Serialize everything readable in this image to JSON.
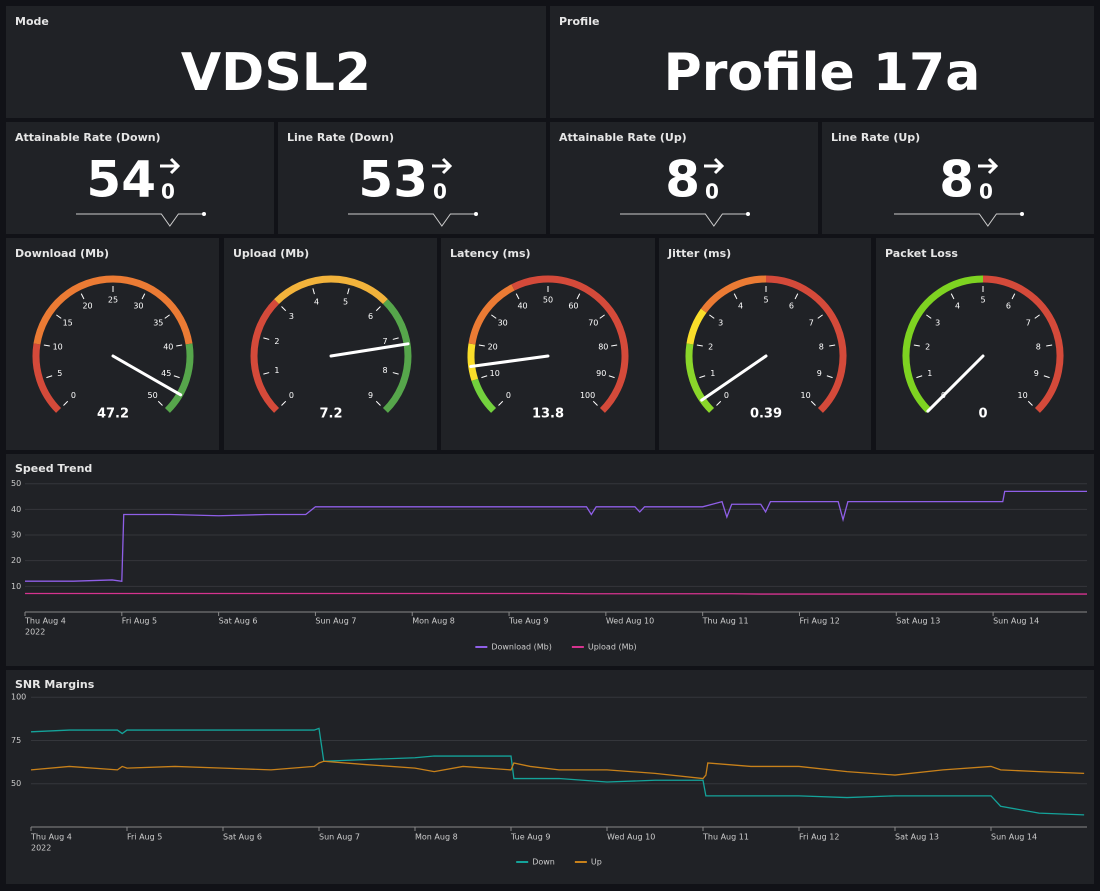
{
  "header": {
    "mode": {
      "title": "Mode",
      "value": "VDSL2"
    },
    "profile": {
      "title": "Profile",
      "value": "Profile 17a"
    }
  },
  "stats": [
    {
      "title": "Attainable Rate (Down)",
      "value": 54,
      "change": 0,
      "trend": [
        54,
        54,
        54,
        54,
        54,
        54,
        54,
        54,
        54,
        54,
        54,
        0,
        54,
        54,
        54,
        54
      ]
    },
    {
      "title": "Line Rate (Down)",
      "value": 53,
      "change": 0,
      "trend": [
        53,
        53,
        53,
        53,
        53,
        53,
        53,
        53,
        53,
        53,
        53,
        0,
        53,
        53,
        53,
        53
      ]
    },
    {
      "title": "Attainable Rate (Up)",
      "value": 8,
      "change": 0,
      "trend": [
        8,
        8,
        8,
        8,
        8,
        8,
        8,
        8,
        8,
        8,
        8,
        0,
        8,
        8,
        8,
        8
      ]
    },
    {
      "title": "Line Rate (Up)",
      "value": 8,
      "change": 0,
      "trend": [
        8,
        8,
        8,
        8,
        8,
        8,
        8,
        8,
        8,
        8,
        8,
        0,
        8,
        8,
        8,
        8
      ]
    }
  ],
  "gauges": [
    {
      "title": "Download (Mb)",
      "value": 47.2,
      "ticks": [
        0,
        5,
        10,
        15,
        20,
        25,
        30,
        35,
        40,
        45,
        50
      ],
      "bands": [
        {
          "from": 0,
          "to": 10,
          "color": "#d44a3a"
        },
        {
          "from": 10,
          "to": 40,
          "color": "#eb7b34"
        },
        {
          "from": 40,
          "to": 50,
          "color": "#56a64b"
        }
      ]
    },
    {
      "title": "Upload (Mb)",
      "value": 7.2,
      "ticks": [
        0,
        1,
        2,
        3,
        4,
        5,
        6,
        7,
        8,
        9
      ],
      "bands": [
        {
          "from": 0,
          "to": 3,
          "color": "#d44a3a"
        },
        {
          "from": 3,
          "to": 6,
          "color": "#f2b33b"
        },
        {
          "from": 6,
          "to": 9,
          "color": "#56a64b"
        }
      ]
    },
    {
      "title": "Latency (ms)",
      "value": 13.8,
      "ticks": [
        0,
        10,
        20,
        30,
        40,
        50,
        60,
        70,
        80,
        90,
        100
      ],
      "bands": [
        {
          "from": 0,
          "to": 10,
          "color": "#73d13d"
        },
        {
          "from": 10,
          "to": 20,
          "color": "#fade2a"
        },
        {
          "from": 20,
          "to": 40,
          "color": "#eb7b34"
        },
        {
          "from": 40,
          "to": 100,
          "color": "#d44a3a"
        }
      ]
    },
    {
      "title": "Jitter (ms)",
      "value": 0.39,
      "ticks": [
        0,
        1,
        2,
        3,
        4,
        5,
        6,
        7,
        8,
        9,
        10
      ],
      "bands": [
        {
          "from": 0,
          "to": 2,
          "color": "#8ad62a"
        },
        {
          "from": 2,
          "to": 3,
          "color": "#fade2a"
        },
        {
          "from": 3,
          "to": 5,
          "color": "#eb7b34"
        },
        {
          "from": 5,
          "to": 10,
          "color": "#d44a3a"
        }
      ]
    },
    {
      "title": "Packet Loss",
      "value": 0,
      "ticks": [
        0,
        1,
        2,
        3,
        4,
        5,
        6,
        7,
        8,
        9,
        10
      ],
      "bands": [
        {
          "from": 0,
          "to": 5,
          "color": "#7ed321"
        },
        {
          "from": 5,
          "to": 10,
          "color": "#d44a3a"
        }
      ]
    }
  ],
  "chart_data": [
    {
      "type": "line",
      "title": "Speed Trend",
      "year": "2022",
      "x": [
        0,
        0.5,
        0.9,
        1.0,
        1.02,
        1.5,
        2,
        2.5,
        2.9,
        3.0,
        3.5,
        4,
        4.5,
        5,
        5.5,
        5.8,
        5.85,
        5.9,
        6,
        6.3,
        6.35,
        6.4,
        6.5,
        7,
        7.1,
        7.2,
        7.25,
        7.3,
        7.6,
        7.65,
        7.7,
        8,
        8.4,
        8.45,
        8.5,
        9,
        9.5,
        10.1,
        10.12,
        10.5,
        10.97
      ],
      "series": [
        {
          "name": "Download (Mb)",
          "color": "#8f5fe8",
          "values": [
            12,
            12,
            12.5,
            12,
            38,
            38,
            37.5,
            38,
            38,
            41,
            41,
            41,
            41,
            41,
            41,
            41,
            38,
            41,
            41,
            41,
            39,
            41,
            41,
            41,
            42,
            43,
            37,
            42,
            42,
            39,
            43,
            43,
            43,
            36,
            43,
            43,
            43,
            43,
            47,
            47,
            47
          ]
        },
        {
          "name": "Upload (Mb)",
          "color": "#d6338f",
          "values": [
            7.2,
            7.2,
            7.2,
            7.2,
            7.2,
            7.2,
            7.2,
            7.2,
            7.2,
            7.2,
            7.2,
            7.2,
            7.2,
            7.2,
            7.2,
            7.1,
            7.1,
            7.1,
            7.1,
            7.1,
            7.1,
            7.1,
            7.1,
            7.1,
            7.1,
            7.1,
            7.1,
            7.1,
            7.0,
            7.0,
            7.0,
            7.0,
            7.0,
            7.0,
            7.0,
            7.0,
            7.0,
            7.0,
            7.0,
            7.0,
            7.0
          ]
        }
      ],
      "xlim": [
        0,
        10.97
      ],
      "ylim": [
        0,
        53
      ],
      "yticks": [
        10,
        20,
        30,
        40,
        50
      ],
      "xticks": [
        {
          "value": 0,
          "label": "Thu Aug 4"
        },
        {
          "value": 1,
          "label": "Fri Aug 5"
        },
        {
          "value": 2,
          "label": "Sat Aug 6"
        },
        {
          "value": 3,
          "label": "Sun Aug 7"
        },
        {
          "value": 4,
          "label": "Mon Aug 8"
        },
        {
          "value": 5,
          "label": "Tue Aug 9"
        },
        {
          "value": 6,
          "label": "Wed Aug 10"
        },
        {
          "value": 7,
          "label": "Thu Aug 11"
        },
        {
          "value": 8,
          "label": "Fri Aug 12"
        },
        {
          "value": 9,
          "label": "Sat Aug 13"
        },
        {
          "value": 10,
          "label": "Sun Aug 14"
        }
      ],
      "grid": true
    },
    {
      "type": "line",
      "title": "SNR Margins",
      "year": "2022",
      "x": [
        0,
        0.4,
        0.9,
        0.95,
        1.0,
        1.5,
        2,
        2.5,
        2.95,
        3.0,
        3.05,
        3.5,
        4,
        4.2,
        4.5,
        5,
        5.03,
        5.2,
        5.5,
        6,
        6.5,
        7,
        7.03,
        7.05,
        7.5,
        8,
        8.5,
        9,
        9.5,
        10,
        10.1,
        10.5,
        10.97
      ],
      "series": [
        {
          "name": "Down",
          "color": "#14a39a",
          "values": [
            80,
            81,
            81,
            79,
            81,
            81,
            81,
            81,
            81,
            82,
            63,
            64,
            65,
            66,
            66,
            66,
            53,
            53,
            53,
            51,
            52,
            52,
            43,
            43,
            43,
            43,
            42,
            43,
            43,
            43,
            37,
            33,
            32
          ]
        },
        {
          "name": "Up",
          "color": "#c8811a",
          "values": [
            58,
            60,
            58,
            60,
            59,
            60,
            59,
            58,
            60,
            62,
            63,
            61,
            59,
            57,
            60,
            58,
            62,
            60,
            58,
            58,
            56,
            53,
            55,
            62,
            60,
            60,
            57,
            55,
            58,
            60,
            58,
            57,
            56
          ]
        }
      ],
      "xlim": [
        0,
        11
      ],
      "ylim": [
        25,
        103
      ],
      "yticks": [
        50,
        75,
        100
      ],
      "xticks": [
        {
          "value": 0,
          "label": "Thu Aug 4"
        },
        {
          "value": 1,
          "label": "Fri Aug 5"
        },
        {
          "value": 2,
          "label": "Sat Aug 6"
        },
        {
          "value": 3,
          "label": "Sun Aug 7"
        },
        {
          "value": 4,
          "label": "Mon Aug 8"
        },
        {
          "value": 5,
          "label": "Tue Aug 9"
        },
        {
          "value": 6,
          "label": "Wed Aug 10"
        },
        {
          "value": 7,
          "label": "Thu Aug 11"
        },
        {
          "value": 8,
          "label": "Fri Aug 12"
        },
        {
          "value": 9,
          "label": "Sat Aug 13"
        },
        {
          "value": 10,
          "label": "Sun Aug 14"
        }
      ],
      "grid": true
    }
  ]
}
